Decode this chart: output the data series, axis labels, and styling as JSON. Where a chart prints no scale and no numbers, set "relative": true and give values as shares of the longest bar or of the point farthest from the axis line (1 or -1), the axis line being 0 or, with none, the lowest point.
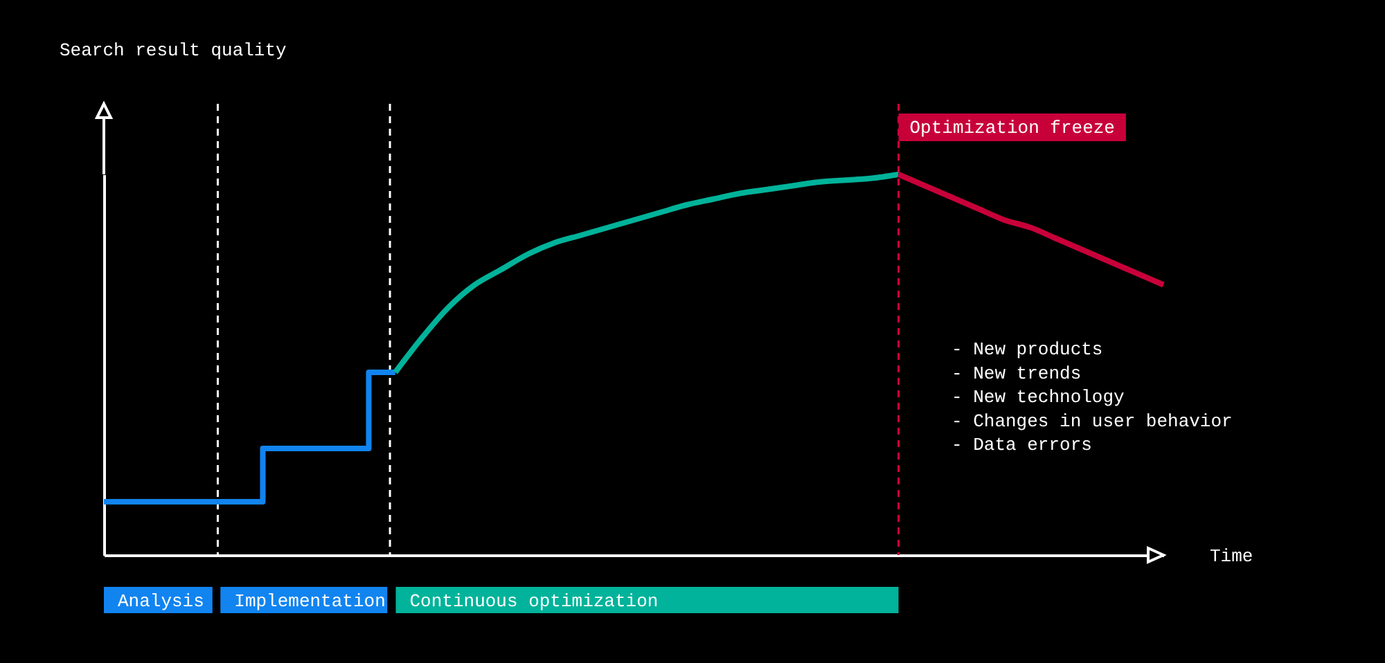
{
  "chart_data": {
    "type": "line",
    "relative": true,
    "xlabel": "Time",
    "categories": [
      null,
      null,
      null,
      null,
      null,
      null,
      null,
      null,
      null,
      null,
      null,
      null,
      null,
      null,
      null,
      null,
      null,
      null,
      null,
      null,
      null,
      null,
      null,
      null,
      null,
      null,
      null,
      null,
      null,
      null,
      null,
      null,
      null,
      null,
      null,
      null,
      null,
      null,
      null,
      null,
      null
    ],
    "series": [
      {
        "type": "step",
        "color": "#1184f0",
        "values": [
          0.14,
          0.14,
          0.14,
          0.14,
          0.14,
          0.14,
          0.28,
          0.28,
          0.28,
          0.28,
          0.48,
          0.48,
          null,
          null,
          null,
          null,
          null,
          null,
          null,
          null,
          null,
          null,
          null,
          null,
          null,
          null,
          null,
          null,
          null,
          null,
          null,
          null,
          null,
          null,
          null,
          null,
          null,
          null,
          null,
          null,
          null
        ]
      },
      {
        "color": "#00b39a",
        "values": [
          null,
          null,
          null,
          null,
          null,
          null,
          null,
          null,
          null,
          null,
          null,
          0.48,
          0.57,
          0.65,
          0.71,
          0.75,
          0.79,
          0.82,
          0.84,
          0.86,
          0.88,
          0.9,
          0.92,
          0.935,
          0.95,
          0.96,
          0.97,
          0.98,
          0.985,
          0.99,
          1,
          null,
          null,
          null,
          null,
          null,
          null,
          null,
          null,
          null,
          null
        ]
      },
      {
        "color": "#c8003a",
        "values": [
          null,
          null,
          null,
          null,
          null,
          null,
          null,
          null,
          null,
          null,
          null,
          null,
          null,
          null,
          null,
          null,
          null,
          null,
          null,
          null,
          null,
          null,
          null,
          null,
          null,
          null,
          null,
          null,
          null,
          null,
          1,
          0.97,
          0.94,
          0.91,
          0.88,
          0.86,
          0.83,
          0.8,
          0.77,
          0.74,
          0.71
        ]
      }
    ],
    "annotations": [
      "Analysis",
      "Implementation",
      "Continuous optimization",
      "Optimization freeze",
      "- New products",
      "- New trends",
      "- New technology",
      "- Changes in user behavior",
      "- Data errors",
      "Search result quality"
    ]
  }
}
